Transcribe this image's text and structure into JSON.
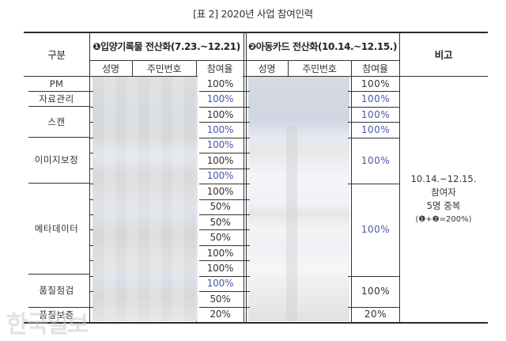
{
  "title": "[표 2] 2020년 사업 참여인력",
  "header": {
    "category": "구분",
    "group1": "❶입양기록물 전산화(7.23.~12.21)",
    "group2": "❷아동카드 전산화(10.14.~12.15.)",
    "remarks": "비고",
    "sub": {
      "name": "성명",
      "id_number": "주민번호",
      "participation": "참여율"
    }
  },
  "categories": [
    {
      "label": "PM",
      "rows": 1
    },
    {
      "label": "자료관리",
      "rows": 1
    },
    {
      "label": "스캔",
      "rows": 2
    },
    {
      "label": "이미지보정",
      "rows": 3
    },
    {
      "label": "메타데이터",
      "rows": 6
    },
    {
      "label": "품질점검",
      "rows": 2
    },
    {
      "label": "품질보증",
      "rows": 1
    }
  ],
  "group1_rates": [
    {
      "value": "100%",
      "color": "#333333"
    },
    {
      "value": "100%",
      "color": "#4a5aa8"
    },
    {
      "value": "100%",
      "color": "#333333"
    },
    {
      "value": "100%",
      "color": "#4a5aa8"
    },
    {
      "value": "100%",
      "color": "#4a5aa8"
    },
    {
      "value": "100%",
      "color": "#333333"
    },
    {
      "value": "100%",
      "color": "#4a5aa8"
    },
    {
      "value": "100%",
      "color": "#333333"
    },
    {
      "value": "50%",
      "color": "#333333"
    },
    {
      "value": "50%",
      "color": "#333333"
    },
    {
      "value": "50%",
      "color": "#333333"
    },
    {
      "value": "100%",
      "color": "#333333"
    },
    {
      "value": "100%",
      "color": "#333333"
    },
    {
      "value": "100%",
      "color": "#4a5aa8"
    },
    {
      "value": "50%",
      "color": "#333333"
    },
    {
      "value": "20%",
      "color": "#333333"
    }
  ],
  "group2_rates": [
    {
      "value": "100%",
      "color": "#333333",
      "span": "PM"
    },
    {
      "value": "100%",
      "color": "#4a5aa8",
      "span": "자료관리"
    },
    {
      "value": "100%",
      "color": "#4a5aa8",
      "span": "스캔-1"
    },
    {
      "value": "100%",
      "color": "#4a5aa8",
      "span": "스캔-2"
    },
    {
      "value": "100%",
      "color": "#4a5aa8",
      "span": "이미지보정"
    },
    {
      "value": "100%",
      "color": "#4a5aa8",
      "span": "메타데이터"
    },
    {
      "value": "100%",
      "color": "#333333",
      "span": "품질점검"
    },
    {
      "value": "20%",
      "color": "#333333",
      "span": "품질보증"
    }
  ],
  "remarks_note": {
    "line1": "10.14.~12.15.",
    "line2": "참여자",
    "line3": "5명 중복",
    "line4": "(❶+❷=200%)"
  },
  "watermark": "한국일보"
}
